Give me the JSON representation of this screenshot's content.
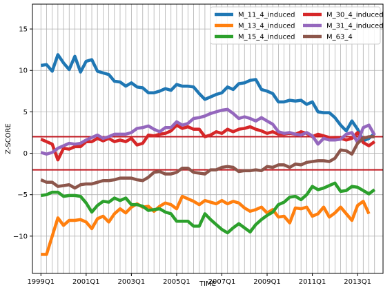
{
  "chart_data": {
    "type": "line",
    "xlabel": "TIME",
    "ylabel": "Z-SCORE",
    "xlim_index": [
      -1.5,
      60.5
    ],
    "ylim": [
      -14.5,
      18
    ],
    "grid": true,
    "legend_placement": "top-right",
    "x_tick_labels": [
      "1999Q1",
      "2001Q1",
      "2003Q1",
      "2005Q1",
      "2007Q1",
      "2009Q1",
      "2011Q1",
      "2013Q1"
    ],
    "x_tick_index": [
      0,
      8,
      16,
      24,
      32,
      40,
      48,
      56
    ],
    "y_ticks": [
      -10,
      -5,
      0,
      5,
      10,
      15
    ],
    "y_tick_labels": [
      "−10",
      "−5",
      "0",
      "5",
      "10",
      "15"
    ],
    "threshold_lines": [
      2,
      -2
    ],
    "threshold_color": "#c0141c",
    "x": [
      "1999Q1",
      "1999Q2",
      "1999Q3",
      "1999Q4",
      "2000Q1",
      "2000Q2",
      "2000Q3",
      "2000Q4",
      "2001Q1",
      "2001Q2",
      "2001Q3",
      "2001Q4",
      "2002Q1",
      "2002Q2",
      "2002Q3",
      "2002Q4",
      "2003Q1",
      "2003Q2",
      "2003Q3",
      "2003Q4",
      "2004Q1",
      "2004Q2",
      "2004Q3",
      "2004Q4",
      "2005Q1",
      "2005Q2",
      "2005Q3",
      "2005Q4",
      "2006Q1",
      "2006Q2",
      "2006Q3",
      "2006Q4",
      "2007Q1",
      "2007Q2",
      "2007Q3",
      "2007Q4",
      "2008Q1",
      "2008Q2",
      "2008Q3",
      "2008Q4",
      "2009Q1",
      "2009Q2",
      "2009Q3",
      "2009Q4",
      "2010Q1",
      "2010Q2",
      "2010Q3",
      "2010Q4",
      "2011Q1",
      "2011Q2",
      "2011Q3",
      "2011Q4",
      "2012Q1",
      "2012Q2",
      "2012Q3",
      "2012Q4",
      "2013Q1",
      "2013Q2",
      "2013Q3",
      "2013Q4"
    ],
    "series": [
      {
        "name": "M_11_4_induced",
        "color": "#1f77b4",
        "values": [
          10.6,
          10.7,
          9.9,
          11.9,
          10.9,
          10.1,
          11.7,
          9.8,
          11.1,
          11.3,
          9.9,
          9.7,
          9.5,
          8.7,
          8.6,
          8.1,
          8.5,
          8.0,
          7.9,
          7.3,
          7.3,
          7.5,
          7.8,
          7.6,
          8.3,
          8.1,
          8.1,
          8.0,
          7.2,
          6.5,
          6.8,
          7.1,
          7.3,
          8.0,
          7.7,
          8.4,
          8.5,
          8.8,
          8.9,
          7.7,
          7.5,
          7.2,
          6.2,
          6.2,
          6.4,
          6.3,
          6.4,
          5.9,
          6.2,
          5.0,
          4.9,
          4.9,
          4.3,
          3.4,
          2.7,
          3.9,
          2.9,
          1.5,
          1.8,
          2.4
        ]
      },
      {
        "name": "M_13_4_induced",
        "color": "#ff7f0e",
        "values": [
          -12.2,
          -12.2,
          -10.0,
          -7.8,
          -8.7,
          -8.1,
          -8.1,
          -8.0,
          -8.3,
          -9.1,
          -7.9,
          -7.6,
          -8.3,
          -7.3,
          -6.7,
          -7.2,
          -6.5,
          -6.1,
          -6.5,
          -6.4,
          -7.0,
          -6.4,
          -6.0,
          -6.2,
          -6.7,
          -5.2,
          -5.5,
          -5.8,
          -6.2,
          -5.7,
          -5.9,
          -6.1,
          -5.7,
          -6.1,
          -5.8,
          -6.0,
          -6.6,
          -7.0,
          -6.8,
          -6.5,
          -7.2,
          -6.8,
          -7.7,
          -7.6,
          -8.4,
          -6.6,
          -6.7,
          -6.5,
          -7.6,
          -7.3,
          -6.5,
          -7.7,
          -7.2,
          -6.5,
          -7.3,
          -8.1,
          -6.3,
          -5.8,
          -7.3,
          null
        ]
      },
      {
        "name": "M_15_4_induced",
        "color": "#2ca02c",
        "values": [
          -5.1,
          -5.0,
          -4.7,
          -4.7,
          -5.2,
          -5.1,
          -5.1,
          -5.2,
          -6.0,
          -7.1,
          -6.3,
          -5.8,
          -5.9,
          -5.4,
          -5.7,
          -5.4,
          -6.2,
          -6.2,
          -6.4,
          -6.9,
          -6.8,
          -6.7,
          -7.1,
          -7.3,
          -8.2,
          -8.2,
          -8.2,
          -8.8,
          -8.8,
          -7.3,
          -8.0,
          -8.6,
          -9.2,
          -9.6,
          -9.0,
          -8.5,
          -9.0,
          -9.5,
          -8.6,
          -8.0,
          -7.5,
          -7.1,
          -6.2,
          -5.9,
          -5.3,
          -5.2,
          -5.6,
          -5.0,
          -4.0,
          -4.4,
          -4.2,
          -3.9,
          -3.6,
          -4.6,
          -4.5,
          -4.0,
          -4.1,
          -4.5,
          -4.9,
          -4.4
        ]
      },
      {
        "name": "M_30_4_induced",
        "color": "#d62728",
        "values": [
          1.7,
          1.4,
          1.1,
          -0.8,
          0.6,
          0.5,
          0.8,
          0.8,
          1.4,
          1.4,
          1.8,
          1.5,
          1.8,
          1.4,
          1.6,
          1.4,
          1.8,
          1.0,
          1.2,
          2.2,
          2.1,
          2.3,
          2.4,
          2.7,
          3.4,
          3.0,
          3.2,
          2.9,
          2.9,
          2.0,
          2.2,
          2.6,
          2.4,
          2.9,
          2.6,
          2.9,
          3.0,
          3.2,
          2.9,
          2.7,
          2.4,
          2.6,
          2.3,
          2.3,
          2.4,
          2.3,
          2.6,
          2.4,
          2.0,
          2.3,
          2.1,
          1.9,
          1.8,
          1.8,
          1.6,
          1.8,
          2.5,
          1.3,
          0.9,
          1.4
        ]
      },
      {
        "name": "M_31_4_induced",
        "color": "#9467bd",
        "values": [
          0.1,
          -0.1,
          0.1,
          0.6,
          0.9,
          1.2,
          1.1,
          1.2,
          1.6,
          1.9,
          2.2,
          1.8,
          2.0,
          2.3,
          2.3,
          2.3,
          2.5,
          3.0,
          3.1,
          3.3,
          2.9,
          2.6,
          3.1,
          3.1,
          3.8,
          3.4,
          3.6,
          4.2,
          4.3,
          4.5,
          4.8,
          5.0,
          5.2,
          5.3,
          4.8,
          4.2,
          4.4,
          4.2,
          3.9,
          4.3,
          3.9,
          3.5,
          2.6,
          2.4,
          2.5,
          2.3,
          2.2,
          2.5,
          2.1,
          1.1,
          1.8,
          1.6,
          1.6,
          1.7,
          2.3,
          2.5,
          1.3,
          3.1,
          3.4,
          2.2
        ]
      },
      {
        "name": "M_63_4",
        "color": "#8c564b",
        "values": [
          -3.2,
          -3.5,
          -3.5,
          -4.0,
          -3.9,
          -3.8,
          -4.2,
          -3.8,
          -3.7,
          -3.7,
          -3.5,
          -3.3,
          -3.3,
          -3.2,
          -3.0,
          -3.0,
          -3.0,
          -3.2,
          -3.3,
          -2.9,
          -2.3,
          -2.2,
          -2.5,
          -2.5,
          -2.3,
          -1.8,
          -1.8,
          -2.3,
          -2.4,
          -2.5,
          -2.0,
          -2.0,
          -1.7,
          -1.6,
          -1.7,
          -2.2,
          -2.1,
          -2.1,
          -2.0,
          -2.1,
          -1.6,
          -1.7,
          -1.4,
          -1.4,
          -1.7,
          -1.3,
          -1.4,
          -1.1,
          -1.0,
          -0.9,
          -0.9,
          -1.0,
          -0.6,
          0.4,
          0.3,
          -0.1,
          1.2,
          1.8,
          2.0,
          2.0
        ]
      }
    ]
  }
}
